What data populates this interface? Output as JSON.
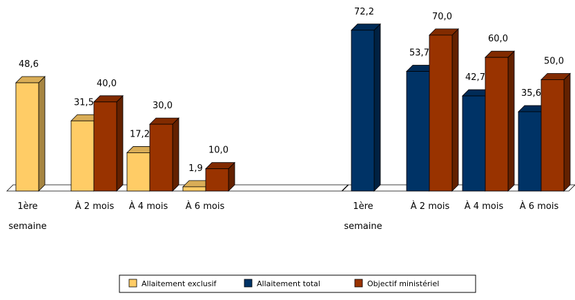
{
  "chart_data": [
    {
      "type": "bar",
      "categories": [
        [
          "1ère",
          "semaine"
        ],
        [
          "À 2 mois"
        ],
        [
          "À 4 mois"
        ],
        [
          "À 6 mois"
        ]
      ],
      "series": [
        {
          "name": "Allaitement exclusif",
          "color": "#FFCC66",
          "values": [
            48.6,
            31.5,
            17.2,
            1.9
          ],
          "labels": [
            "48,6",
            "31,5",
            "17,2",
            "1,9"
          ]
        },
        {
          "name": "Objectif ministériel",
          "color": "#993300",
          "values": [
            null,
            40.0,
            30.0,
            10.0
          ],
          "labels": [
            null,
            "40,0",
            "30,0",
            "10,0"
          ]
        }
      ]
    },
    {
      "type": "bar",
      "categories": [
        [
          "1ère",
          "semaine"
        ],
        [
          "À 2 mois"
        ],
        [
          "À 4 mois"
        ],
        [
          "À 6 mois"
        ]
      ],
      "series": [
        {
          "name": "Allaitement total",
          "color": "#003366",
          "values": [
            72.2,
            53.7,
            42.7,
            35.6
          ],
          "labels": [
            "72,2",
            "53,7",
            "42,7",
            "35,6"
          ]
        },
        {
          "name": "Objectif ministériel",
          "color": "#993300",
          "values": [
            null,
            70.0,
            60.0,
            50.0
          ],
          "labels": [
            null,
            "70,0",
            "60,0",
            "50,0"
          ]
        }
      ]
    }
  ],
  "legend": [
    {
      "label": "Allaitement exclusif",
      "color": "#FFCC66"
    },
    {
      "label": "Allaitement total",
      "color": "#003366"
    },
    {
      "label": "Objectif ministériel",
      "color": "#993300"
    }
  ]
}
